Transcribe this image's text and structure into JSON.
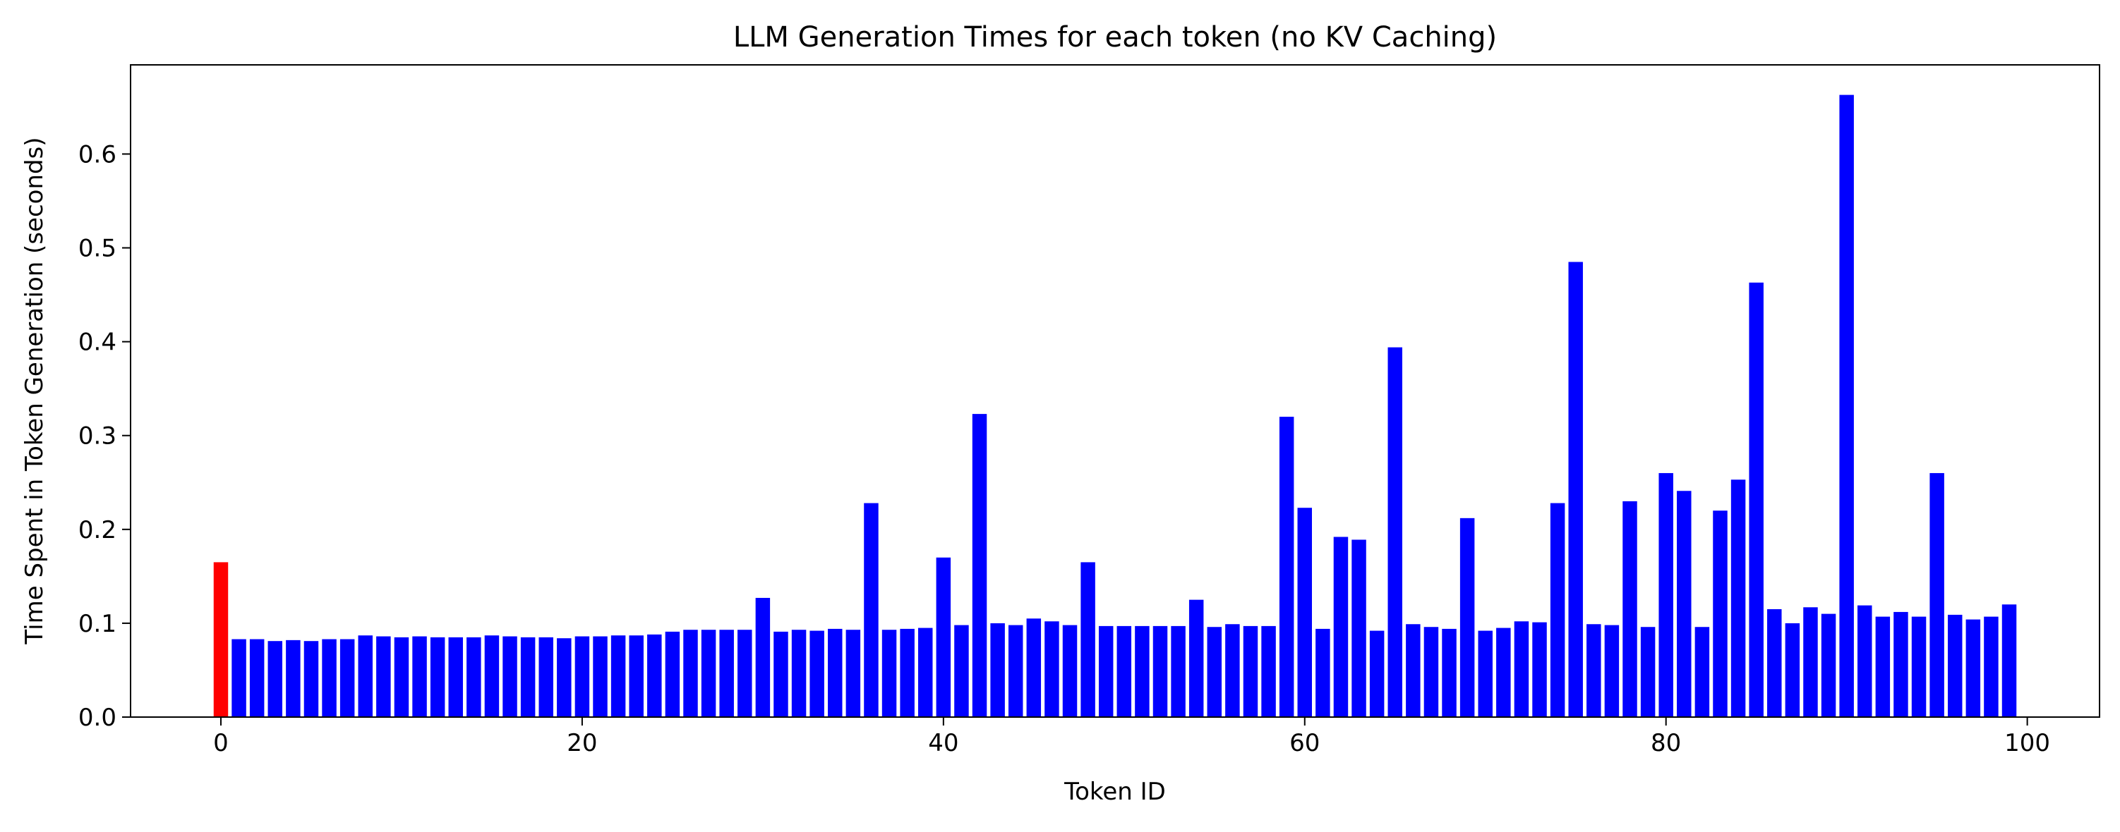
{
  "chart_data": {
    "type": "bar",
    "title": "LLM Generation Times for each token (no KV Caching)",
    "xlabel": "Token ID",
    "ylabel": "Time Spent in Token Generation (seconds)",
    "xlim": [
      -5,
      104
    ],
    "ylim": [
      0,
      0.695
    ],
    "xticks": [
      0,
      20,
      40,
      60,
      80,
      100
    ],
    "yticks": [
      0.0,
      0.1,
      0.2,
      0.3,
      0.4,
      0.5,
      0.6
    ],
    "xtick_labels": [
      "0",
      "20",
      "40",
      "60",
      "80",
      "100"
    ],
    "ytick_labels": [
      "0.0",
      "0.1",
      "0.2",
      "0.3",
      "0.4",
      "0.5",
      "0.6"
    ],
    "grid": false,
    "legend": false,
    "highlight_color": "#ff0000",
    "bar_color": "#0000ff",
    "highlighted_categories": [
      0
    ],
    "categories": [
      0,
      1,
      2,
      3,
      4,
      5,
      6,
      7,
      8,
      9,
      10,
      11,
      12,
      13,
      14,
      15,
      16,
      17,
      18,
      19,
      20,
      21,
      22,
      23,
      24,
      25,
      26,
      27,
      28,
      29,
      30,
      31,
      32,
      33,
      34,
      35,
      36,
      37,
      38,
      39,
      40,
      41,
      42,
      43,
      44,
      45,
      46,
      47,
      48,
      49,
      50,
      51,
      52,
      53,
      54,
      55,
      56,
      57,
      58,
      59,
      60,
      61,
      62,
      63,
      64,
      65,
      66,
      67,
      68,
      69,
      70,
      71,
      72,
      73,
      74,
      75,
      76,
      77,
      78,
      79,
      80,
      81,
      82,
      83,
      84,
      85,
      86,
      87,
      88,
      89,
      90,
      91,
      92,
      93,
      94,
      95,
      96,
      97,
      98,
      99
    ],
    "values": [
      0.165,
      0.083,
      0.083,
      0.081,
      0.082,
      0.081,
      0.083,
      0.083,
      0.087,
      0.086,
      0.085,
      0.086,
      0.085,
      0.085,
      0.085,
      0.087,
      0.086,
      0.085,
      0.085,
      0.084,
      0.086,
      0.086,
      0.087,
      0.087,
      0.088,
      0.091,
      0.093,
      0.093,
      0.093,
      0.093,
      0.127,
      0.091,
      0.093,
      0.092,
      0.094,
      0.093,
      0.228,
      0.093,
      0.094,
      0.095,
      0.17,
      0.098,
      0.323,
      0.1,
      0.098,
      0.105,
      0.102,
      0.098,
      0.165,
      0.097,
      0.097,
      0.097,
      0.097,
      0.097,
      0.125,
      0.096,
      0.099,
      0.097,
      0.097,
      0.32,
      0.223,
      0.094,
      0.192,
      0.189,
      0.092,
      0.394,
      0.099,
      0.096,
      0.094,
      0.212,
      0.092,
      0.095,
      0.102,
      0.101,
      0.228,
      0.485,
      0.099,
      0.098,
      0.23,
      0.096,
      0.26,
      0.241,
      0.096,
      0.22,
      0.253,
      0.463,
      0.115,
      0.1,
      0.117,
      0.11,
      0.663,
      0.119,
      0.107,
      0.112,
      0.107,
      0.26,
      0.109,
      0.104,
      0.107,
      0.12
    ]
  }
}
